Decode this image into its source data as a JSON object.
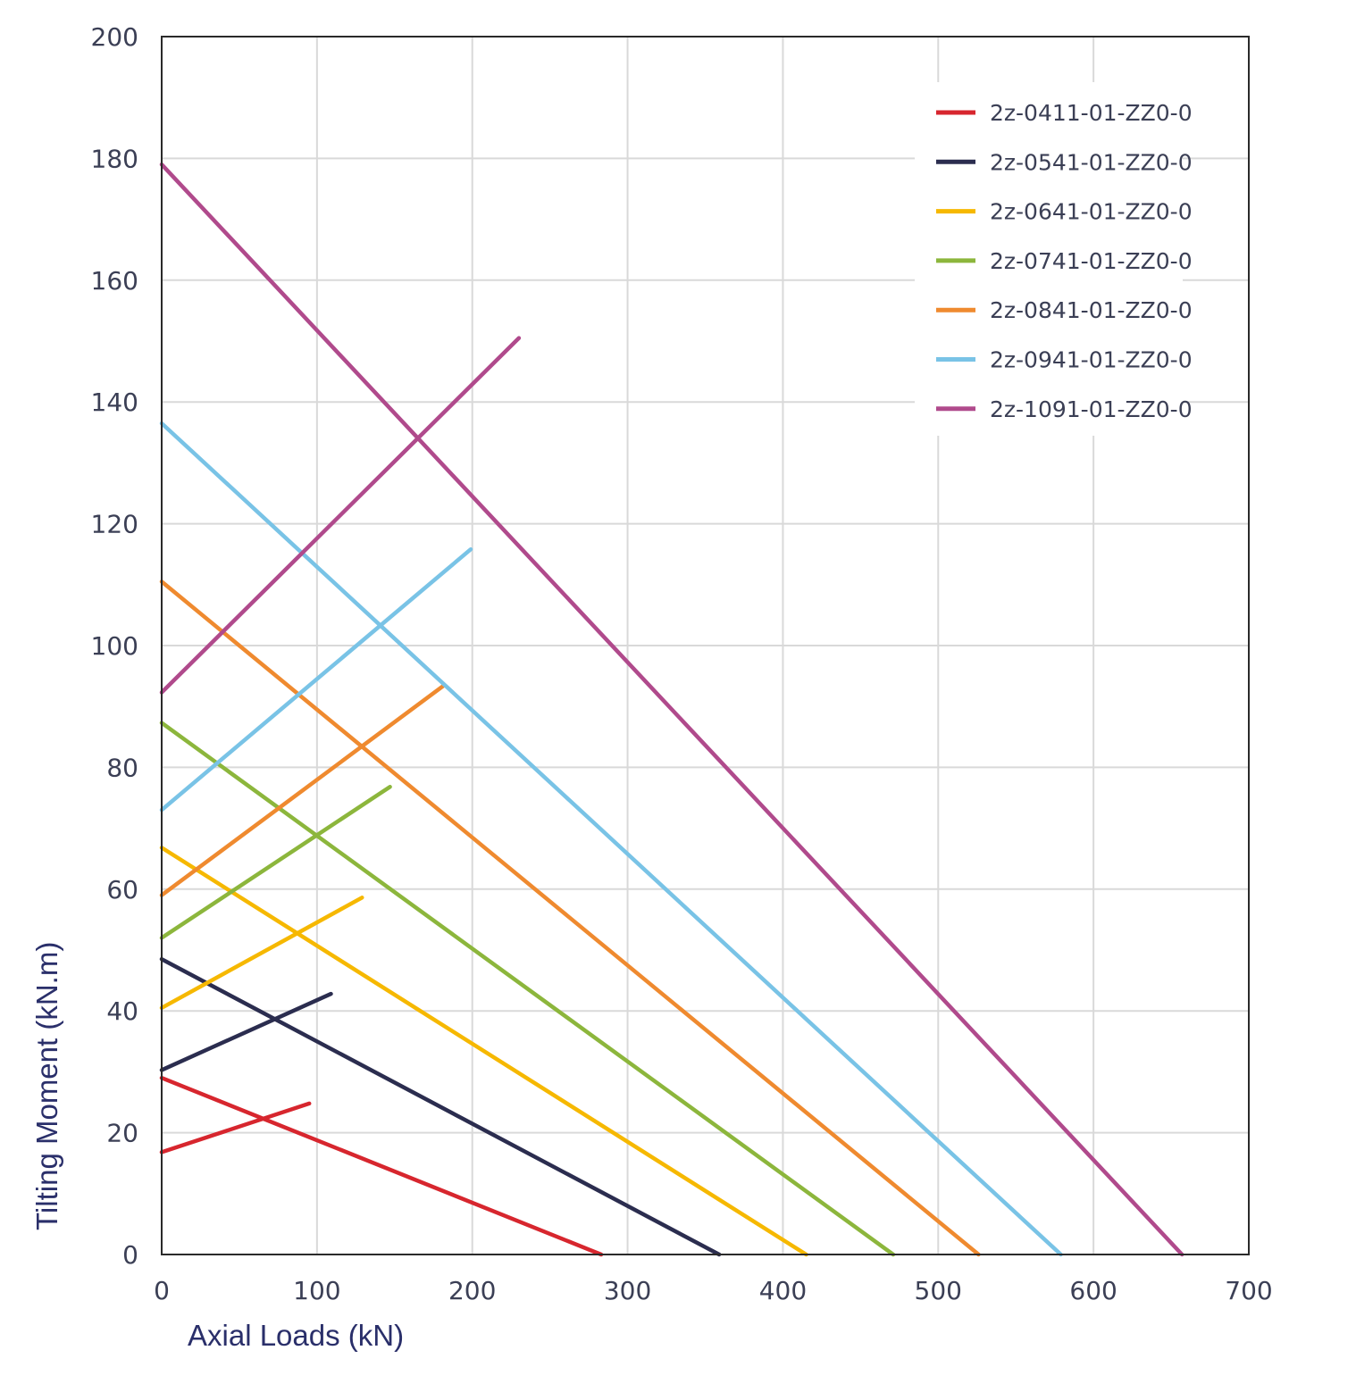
{
  "chart_data": {
    "type": "line",
    "title": "",
    "xlabel": "Axial Loads (kN)",
    "ylabel": "Tilting Moment (kN.m)",
    "xlim": [
      0,
      700
    ],
    "ylim": [
      0,
      200
    ],
    "xticks": [
      "0",
      "100",
      "200",
      "300",
      "400",
      "500",
      "600",
      "700"
    ],
    "yticks": [
      "0",
      "20",
      "40",
      "60",
      "80",
      "100",
      "120",
      "140",
      "160",
      "180",
      "200"
    ],
    "grid": true,
    "legend_position": "top-right",
    "series": [
      {
        "name": "2z-0411-01-ZZ0-0",
        "color": "#d7262e",
        "segments": [
          [
            [
              0,
              29.0
            ],
            [
              283,
              0
            ]
          ],
          [
            [
              0,
              16.8
            ],
            [
              95,
              24.8
            ]
          ]
        ]
      },
      {
        "name": "2z-0541-01-ZZ0-0",
        "color": "#2b2d4f",
        "segments": [
          [
            [
              0,
              48.5
            ],
            [
              359,
              0
            ]
          ],
          [
            [
              0,
              30.3
            ],
            [
              109,
              42.8
            ]
          ]
        ]
      },
      {
        "name": "2z-0641-01-ZZ0-0",
        "color": "#f6b800",
        "segments": [
          [
            [
              0,
              66.8
            ],
            [
              415,
              0
            ]
          ],
          [
            [
              0,
              40.5
            ],
            [
              129,
              58.6
            ]
          ]
        ]
      },
      {
        "name": "2z-0741-01-ZZ0-0",
        "color": "#8cb63c",
        "segments": [
          [
            [
              0,
              87.3
            ],
            [
              471,
              0
            ]
          ],
          [
            [
              0,
              52.0
            ],
            [
              147,
              76.8
            ]
          ]
        ]
      },
      {
        "name": "2z-0841-01-ZZ0-0",
        "color": "#ef8a2f",
        "segments": [
          [
            [
              0,
              110.5
            ],
            [
              526,
              0
            ]
          ],
          [
            [
              0,
              59.0
            ],
            [
              182,
              93.5
            ]
          ]
        ]
      },
      {
        "name": "2z-0941-01-ZZ0-0",
        "color": "#79c3e6",
        "segments": [
          [
            [
              0,
              136.5
            ],
            [
              579,
              0
            ]
          ],
          [
            [
              0,
              73.0
            ],
            [
              199,
              115.8
            ]
          ]
        ]
      },
      {
        "name": "2z-1091-01-ZZ0-0",
        "color": "#b04a8c",
        "segments": [
          [
            [
              0,
              179.0
            ],
            [
              657,
              0
            ]
          ],
          [
            [
              0,
              92.3
            ],
            [
              230,
              150.5
            ]
          ]
        ]
      }
    ]
  }
}
